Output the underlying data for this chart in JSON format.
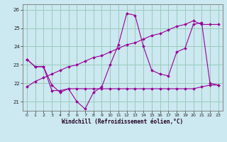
{
  "xlabel": "Windchill (Refroidissement éolien,°C)",
  "background_color": "#cce8f0",
  "grid_color": "#99ccbb",
  "line_color": "#990099",
  "x_values": [
    0,
    1,
    2,
    3,
    4,
    5,
    6,
    7,
    8,
    9,
    10,
    11,
    12,
    13,
    14,
    15,
    16,
    17,
    18,
    19,
    20,
    21,
    22,
    23
  ],
  "series1": [
    23.3,
    22.9,
    22.9,
    21.9,
    21.5,
    21.7,
    21.0,
    20.6,
    21.5,
    21.8,
    23.0,
    24.1,
    25.8,
    25.7,
    24.0,
    22.7,
    22.5,
    22.4,
    23.7,
    23.9,
    25.2,
    25.3,
    22.0,
    21.9
  ],
  "series2": [
    23.3,
    22.9,
    22.9,
    21.6,
    21.6,
    21.7,
    21.7,
    21.7,
    21.7,
    21.7,
    21.7,
    21.7,
    21.7,
    21.7,
    21.7,
    21.7,
    21.7,
    21.7,
    21.7,
    21.7,
    21.7,
    21.8,
    21.9,
    21.9
  ],
  "series3": [
    21.8,
    22.1,
    22.3,
    22.5,
    22.7,
    22.9,
    23.0,
    23.2,
    23.4,
    23.5,
    23.7,
    23.9,
    24.1,
    24.2,
    24.4,
    24.6,
    24.7,
    24.9,
    25.1,
    25.2,
    25.4,
    25.2,
    25.2,
    25.2
  ],
  "ylim": [
    20.5,
    26.3
  ],
  "yticks": [
    21,
    22,
    23,
    24,
    25,
    26
  ],
  "xticks": [
    0,
    1,
    2,
    3,
    4,
    5,
    6,
    7,
    8,
    9,
    10,
    11,
    12,
    13,
    14,
    15,
    16,
    17,
    18,
    19,
    20,
    21,
    22,
    23
  ]
}
